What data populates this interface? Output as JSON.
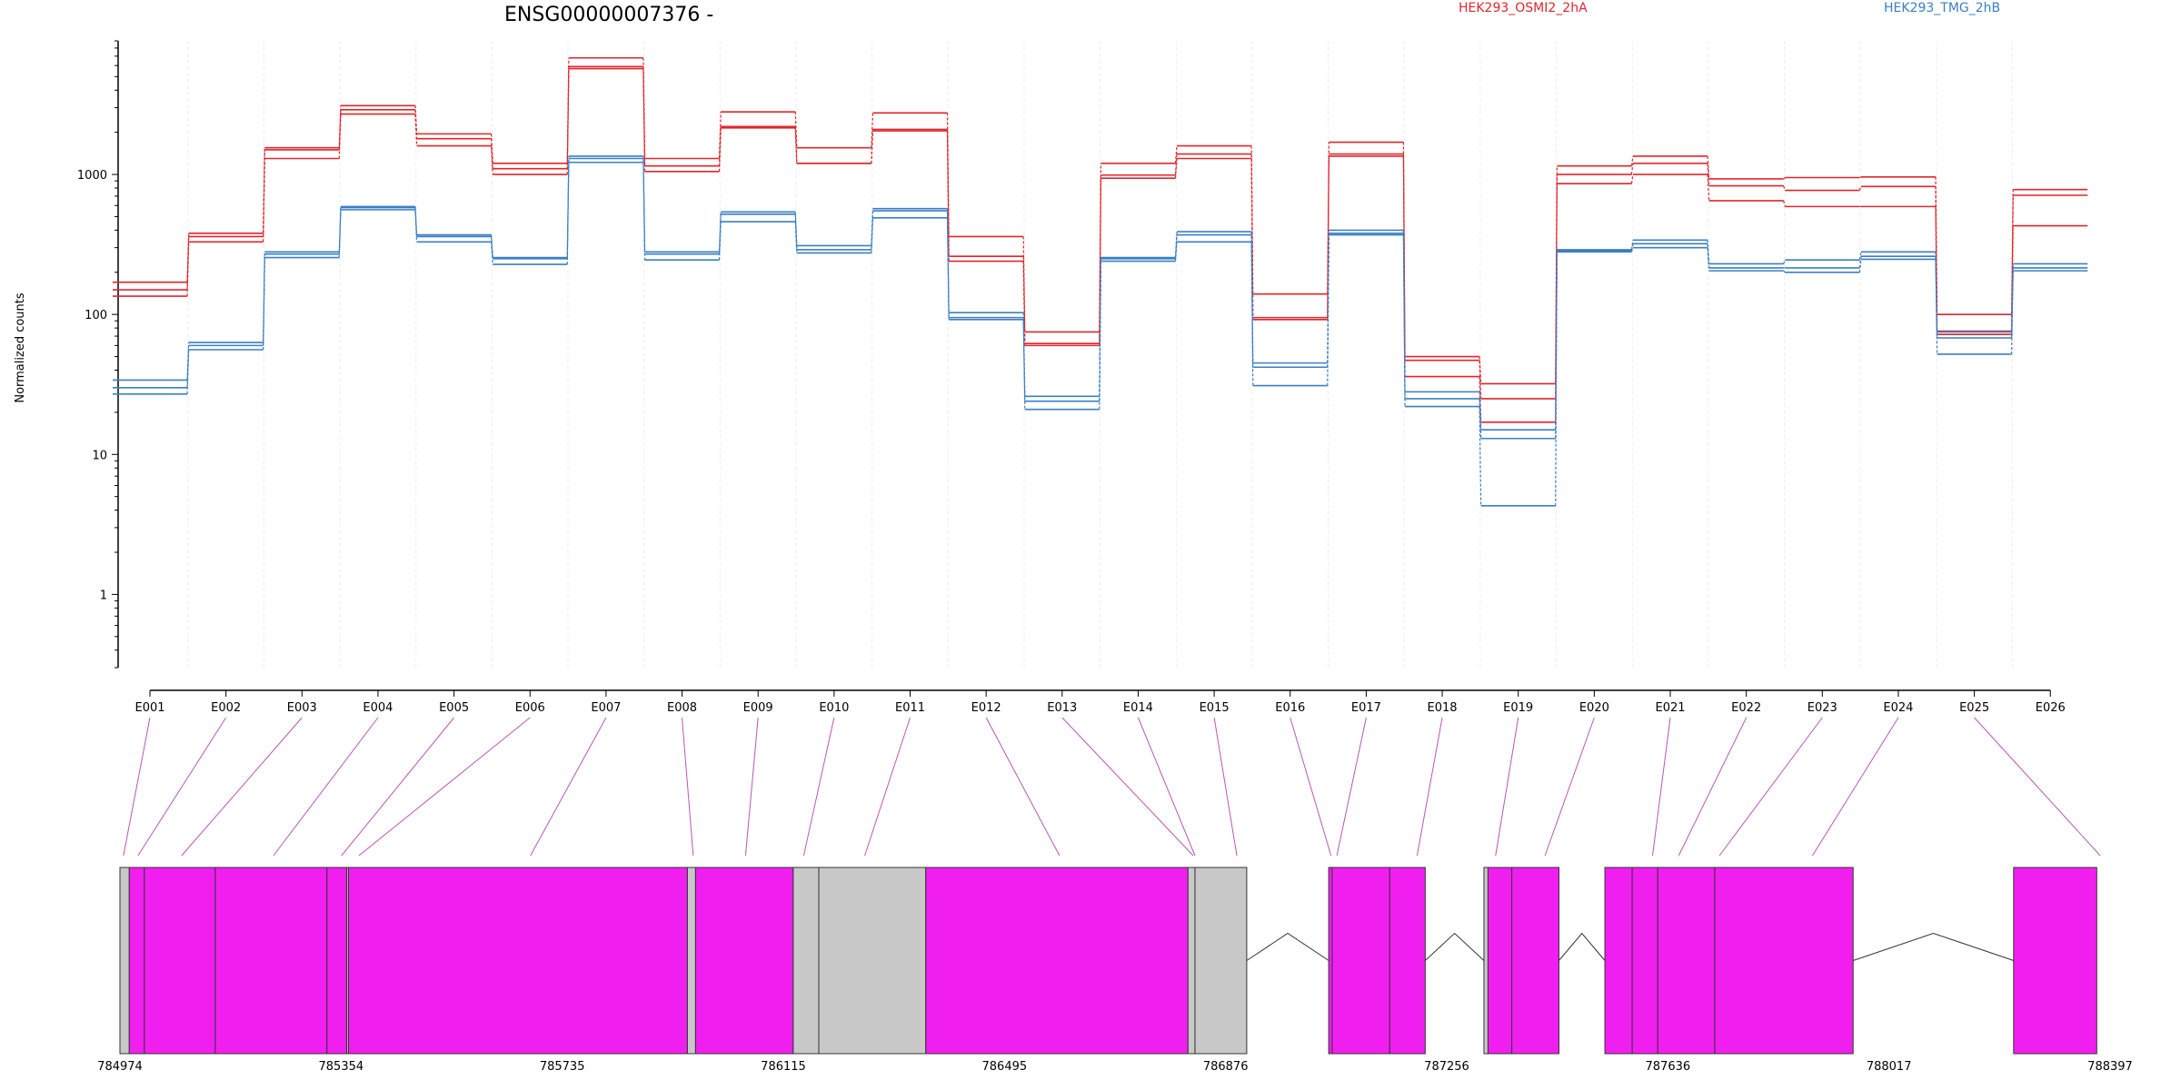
{
  "chart_data": {
    "type": "line",
    "title": "ENSG00000007376 -",
    "ylabel": "Normalized counts",
    "y_scale": "log",
    "ylim": [
      0.3,
      9000
    ],
    "y_ticks": [
      1,
      10,
      100,
      1000
    ],
    "y_tick_labels": [
      "1",
      "10",
      "100",
      "1000"
    ],
    "grid": "vertical",
    "legend_placement": "top",
    "colors": {
      "condA": "#e0262b",
      "condB": "#3a7fc4",
      "exon": "#f01ff0",
      "gray_bin": "#c8c8c8",
      "connector": "#a020a0"
    },
    "categories": [
      "E001",
      "E002",
      "E003",
      "E004",
      "E005",
      "E006",
      "E007",
      "E008",
      "E009",
      "E010",
      "E011",
      "E012",
      "E013",
      "E014",
      "E015",
      "E016",
      "E017",
      "E018",
      "E019",
      "E020",
      "E021",
      "E022",
      "E023",
      "E024",
      "E025",
      "E026"
    ],
    "series": [
      {
        "name": "HEK293_OSMI2_2hA",
        "group": "A",
        "values": [
          170,
          380,
          1550,
          3100,
          1950,
          1200,
          6800,
          1300,
          2800,
          1550,
          2750,
          360,
          75,
          1200,
          1600,
          140,
          1700,
          50,
          32,
          1150,
          1350,
          930,
          950,
          960,
          100,
          780
        ]
      },
      {
        "name": "",
        "group": "A",
        "values": [
          150,
          360,
          1500,
          2900,
          1800,
          1100,
          5900,
          1150,
          2200,
          1200,
          2100,
          260,
          62,
          990,
          1400,
          95,
          1400,
          47,
          25,
          1000,
          1200,
          830,
          770,
          820,
          76,
          710
        ]
      },
      {
        "name": "",
        "group": "A",
        "values": [
          135,
          330,
          1300,
          2700,
          1600,
          1000,
          5700,
          1050,
          2150,
          1200,
          2050,
          240,
          60,
          940,
          1300,
          92,
          1350,
          36,
          17,
          860,
          1000,
          650,
          590,
          590,
          72,
          430
        ]
      },
      {
        "name": "HEK293_TMG_2hB",
        "group": "B",
        "values": [
          34,
          63,
          280,
          590,
          370,
          255,
          1350,
          280,
          540,
          310,
          570,
          103,
          26,
          255,
          390,
          45,
          400,
          28,
          15,
          290,
          340,
          230,
          245,
          280,
          75,
          230
        ]
      },
      {
        "name": "",
        "group": "B",
        "values": [
          30,
          60,
          270,
          580,
          360,
          250,
          1300,
          270,
          520,
          290,
          550,
          95,
          24,
          250,
          370,
          42,
          380,
          25,
          13,
          285,
          320,
          215,
          215,
          260,
          68,
          215
        ]
      },
      {
        "name": "",
        "group": "B",
        "values": [
          27,
          56,
          255,
          560,
          330,
          228,
          1220,
          245,
          460,
          275,
          490,
          92,
          21,
          240,
          330,
          31,
          370,
          22,
          4.3,
          280,
          300,
          205,
          200,
          248,
          52,
          205
        ]
      }
    ],
    "gene_model": {
      "coord_ticks": [
        "784974",
        "785354",
        "785735",
        "786115",
        "786495",
        "786876",
        "787256",
        "787636",
        "788017",
        "788397"
      ],
      "range": [
        784974,
        788397
      ],
      "bins": [
        {
          "start": 784974,
          "end": 784990,
          "type": "gray"
        },
        {
          "start": 784990,
          "end": 785016,
          "type": "exon"
        },
        {
          "start": 785016,
          "end": 785138,
          "type": "exon"
        },
        {
          "start": 785138,
          "end": 785330,
          "type": "exon"
        },
        {
          "start": 785330,
          "end": 785364,
          "type": "exon"
        },
        {
          "start": 785364,
          "end": 785367,
          "type": "gray"
        },
        {
          "start": 785367,
          "end": 785950,
          "type": "exon"
        },
        {
          "start": 785950,
          "end": 785964,
          "type": "gray"
        },
        {
          "start": 785964,
          "end": 786132,
          "type": "exon"
        },
        {
          "start": 786132,
          "end": 786176,
          "type": "gray"
        },
        {
          "start": 786176,
          "end": 786360,
          "type": "gray"
        },
        {
          "start": 786360,
          "end": 786811,
          "type": "exon"
        },
        {
          "start": 786811,
          "end": 786823,
          "type": "gray"
        },
        {
          "start": 786823,
          "end": 786912,
          "type": "gray"
        },
        {
          "start": 787053,
          "end": 787059,
          "type": "exon"
        },
        {
          "start": 787059,
          "end": 787158,
          "type": "exon"
        },
        {
          "start": 787158,
          "end": 787219,
          "type": "exon"
        },
        {
          "start": 787320,
          "end": 787327,
          "type": "gray"
        },
        {
          "start": 787327,
          "end": 787368,
          "type": "exon"
        },
        {
          "start": 787368,
          "end": 787449,
          "type": "exon"
        },
        {
          "start": 787528,
          "end": 787575,
          "type": "exon"
        },
        {
          "start": 787575,
          "end": 787619,
          "type": "exon"
        },
        {
          "start": 787619,
          "end": 787717,
          "type": "exon"
        },
        {
          "start": 787717,
          "end": 787955,
          "type": "exon"
        },
        {
          "start": 788231,
          "end": 788374,
          "type": "exon"
        }
      ],
      "introns": [
        [
          786912,
          787053
        ],
        [
          787219,
          787320
        ],
        [
          787449,
          787528
        ],
        [
          787955,
          788231
        ]
      ],
      "exon_links": [
        784980,
        785005,
        785080,
        785238,
        785355,
        785385,
        785680,
        785960,
        786050,
        786150,
        786255,
        786590,
        786820,
        786823,
        786895,
        787057,
        787067,
        787205,
        787340,
        787425,
        787610,
        787655,
        787725,
        787885,
        788380
      ]
    }
  }
}
